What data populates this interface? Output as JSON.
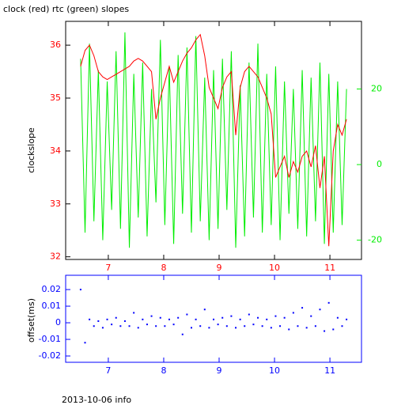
{
  "chart_data": [
    {
      "type": "line",
      "title": "clock (red) rtc (green) slopes",
      "ylabel": "clockslope",
      "x": [
        6.5,
        6.58,
        6.66,
        6.74,
        6.82,
        6.9,
        6.98,
        7.06,
        7.14,
        7.22,
        7.3,
        7.38,
        7.46,
        7.54,
        7.62,
        7.7,
        7.78,
        7.86,
        7.94,
        8.02,
        8.1,
        8.18,
        8.26,
        8.34,
        8.42,
        8.5,
        8.58,
        8.66,
        8.74,
        8.82,
        8.9,
        8.98,
        9.06,
        9.14,
        9.22,
        9.3,
        9.38,
        9.46,
        9.54,
        9.62,
        9.7,
        9.78,
        9.86,
        9.94,
        10.02,
        10.1,
        10.18,
        10.26,
        10.34,
        10.42,
        10.5,
        10.58,
        10.66,
        10.74,
        10.82,
        10.9,
        10.98,
        11.06,
        11.14,
        11.22,
        11.3
      ],
      "series": [
        {
          "color": "#00ee00",
          "axis": "y2",
          "values": [
            28,
            -18,
            32,
            -15,
            25,
            -20,
            22,
            -12,
            30,
            -17,
            35,
            -22,
            24,
            -14,
            27,
            -19,
            20,
            -10,
            33,
            -16,
            26,
            -21,
            29,
            -13,
            31,
            -18,
            34,
            -15,
            23,
            -20,
            25,
            -17,
            28,
            -12,
            30,
            -22,
            21,
            -19,
            27,
            -14,
            32,
            -18,
            24,
            -16,
            26,
            -20,
            22,
            -13,
            20,
            -17,
            25,
            -19,
            23,
            -15,
            27,
            -21,
            24,
            -18,
            22,
            -16,
            20
          ]
        },
        {
          "color": "#ff0000",
          "values": [
            35.6,
            35.9,
            36.0,
            35.8,
            35.5,
            35.4,
            35.35,
            35.4,
            35.45,
            35.5,
            35.55,
            35.6,
            35.7,
            35.75,
            35.7,
            35.6,
            35.5,
            34.6,
            35.0,
            35.3,
            35.6,
            35.3,
            35.5,
            35.7,
            35.85,
            35.95,
            36.1,
            36.2,
            35.8,
            35.2,
            35.0,
            34.8,
            35.2,
            35.4,
            35.5,
            34.3,
            35.2,
            35.5,
            35.6,
            35.5,
            35.4,
            35.2,
            35.0,
            34.7,
            33.5,
            33.7,
            33.9,
            33.5,
            33.8,
            33.6,
            33.9,
            34.0,
            33.7,
            34.1,
            33.3,
            33.9,
            32.2,
            34.0,
            34.5,
            34.3,
            34.6
          ]
        }
      ],
      "xlim": [
        6.23,
        11.57
      ],
      "xticks": [
        7,
        8,
        9,
        10,
        11
      ],
      "ylim": [
        31.95,
        36.45
      ],
      "yticks": [
        32,
        33,
        34,
        35,
        36
      ],
      "y2lim": [
        -25.1,
        37.9
      ],
      "y2ticks": [
        -20,
        0,
        20
      ],
      "xtick_color": "#ff0000",
      "ytick_color": "#ff0000",
      "y2tick_color": "#00ee00",
      "frame_color": "#000000"
    },
    {
      "type": "scatter",
      "ylabel": "offset(ms)",
      "x": [
        6.5,
        6.58,
        6.66,
        6.74,
        6.82,
        6.9,
        6.98,
        7.06,
        7.14,
        7.22,
        7.3,
        7.38,
        7.46,
        7.54,
        7.62,
        7.7,
        7.78,
        7.86,
        7.94,
        8.02,
        8.1,
        8.18,
        8.26,
        8.34,
        8.42,
        8.5,
        8.58,
        8.66,
        8.74,
        8.82,
        8.9,
        8.98,
        9.06,
        9.14,
        9.22,
        9.3,
        9.38,
        9.46,
        9.54,
        9.62,
        9.7,
        9.78,
        9.86,
        9.94,
        10.02,
        10.1,
        10.18,
        10.26,
        10.34,
        10.42,
        10.5,
        10.58,
        10.66,
        10.74,
        10.82,
        10.9,
        10.98,
        11.06,
        11.14,
        11.22,
        11.3
      ],
      "values": [
        0.02,
        -0.012,
        0.002,
        -0.002,
        0.001,
        -0.003,
        0.002,
        -0.001,
        0.003,
        -0.002,
        0.001,
        -0.002,
        0.006,
        -0.003,
        0.002,
        -0.001,
        0.004,
        -0.002,
        0.003,
        -0.002,
        0.002,
        -0.001,
        0.003,
        -0.007,
        0.005,
        -0.003,
        0.002,
        -0.002,
        0.008,
        -0.003,
        0.002,
        -0.001,
        0.003,
        -0.002,
        0.004,
        -0.003,
        0.002,
        -0.002,
        0.005,
        -0.001,
        0.003,
        -0.002,
        0.002,
        -0.003,
        0.004,
        -0.002,
        0.003,
        -0.004,
        0.006,
        -0.002,
        0.009,
        -0.003,
        0.004,
        -0.002,
        0.008,
        -0.005,
        0.012,
        -0.004,
        0.003,
        -0.002,
        0.002
      ],
      "color": "#0000ff",
      "xlim": [
        6.23,
        11.57
      ],
      "xticks": [
        7,
        8,
        9,
        10,
        11
      ],
      "ylim": [
        -0.0238,
        0.0286
      ],
      "yticks": [
        -0.02,
        -0.01,
        0,
        0.01,
        0.02
      ],
      "xtick_color": "#0000ff",
      "ytick_color": "#0000ff",
      "frame_color": "#0000ff"
    }
  ],
  "footer": "2013-10-06 info"
}
